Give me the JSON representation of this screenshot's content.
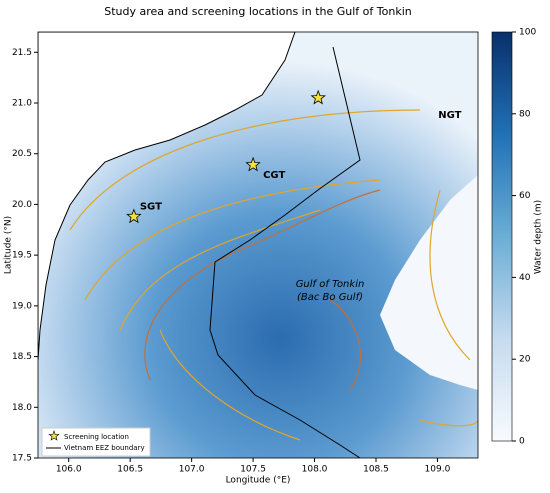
{
  "chart_data": {
    "type": "map",
    "title": "Study area and screening locations in the Gulf of Tonkin",
    "xlabel": "Longitude (°E)",
    "ylabel": "Latitude (°N)",
    "xlim": [
      105.75,
      109.33
    ],
    "ylim": [
      17.5,
      21.7
    ],
    "xticks": [
      {
        "value": 106,
        "label": "106.0"
      },
      106.5,
      {
        "value": 107,
        "label": "107.0"
      },
      107.5,
      {
        "value": 108,
        "label": "108.0"
      },
      108.5,
      {
        "value": 109,
        "label": "109.0"
      }
    ],
    "yticks": [
      17.5,
      {
        "value": 18,
        "label": "18.0"
      },
      18.5,
      {
        "value": 19,
        "label": "19.0"
      },
      19.5,
      {
        "value": 20,
        "label": "20.0"
      },
      20.5,
      {
        "value": 21,
        "label": "21.0"
      },
      21.5
    ],
    "points": {
      "name": "Screening location",
      "color": "#f2e33a",
      "labels": [
        "NGT",
        "CGT",
        "SGT"
      ],
      "x": [
        108.03,
        107.5,
        106.53
      ],
      "y": [
        21.05,
        20.39,
        19.88
      ]
    },
    "boundary": {
      "name": "Vietnam EEZ boundary",
      "color": "#000000"
    },
    "annotation": [
      "Gulf of Tonkin",
      "(Bac Bo Gulf)"
    ],
    "colorbar": {
      "label": "Water depth (m)",
      "lim": [
        0,
        100
      ],
      "ticks": [
        0,
        20,
        40,
        60,
        80,
        100
      ],
      "colors": [
        "#f7fbff",
        "#c6dbef",
        "#6baed6",
        "#2171b5",
        "#08306b"
      ]
    }
  }
}
